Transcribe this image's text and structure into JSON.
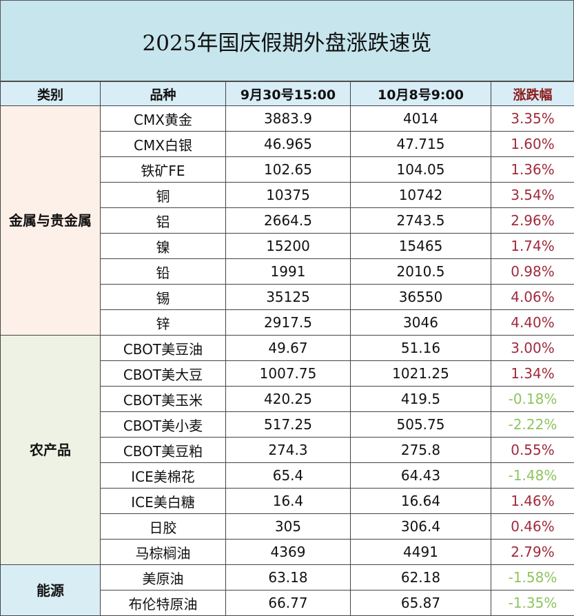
{
  "title": "2025年国庆假期外盘涨跌速览",
  "headers": [
    "类别",
    "品种",
    "9月30号15:00",
    "10月8号9:00",
    "涨跌幅"
  ],
  "colors": {
    "title_bg": "#c6e5ed",
    "header_bg": "#d8edf6",
    "positive": "#a02a3c",
    "negative": "#8ec45e",
    "change_header": "#8b1a1a"
  },
  "categories": [
    {
      "name": "金属与贵金属",
      "bg": "#fdf0e8",
      "rows": [
        [
          "CMX黄金",
          "3883.9",
          "4014",
          "3.35%"
        ],
        [
          "CMX白银",
          "46.965",
          "47.715",
          "1.60%"
        ],
        [
          "铁矿FE",
          "102.65",
          "104.05",
          "1.36%"
        ],
        [
          "铜",
          "10375",
          "10742",
          "3.54%"
        ],
        [
          "铝",
          "2664.5",
          "2743.5",
          "2.96%"
        ],
        [
          "镍",
          "15200",
          "15465",
          "1.74%"
        ],
        [
          "铅",
          "1991",
          "2010.5",
          "0.98%"
        ],
        [
          "锡",
          "35125",
          "36550",
          "4.06%"
        ],
        [
          "锌",
          "2917.5",
          "3046",
          "4.40%"
        ]
      ]
    },
    {
      "name": "农产品",
      "bg": "#edf2e4",
      "rows": [
        [
          "CBOT美豆油",
          "49.67",
          "51.16",
          "3.00%"
        ],
        [
          "CBOT美大豆",
          "1007.75",
          "1021.25",
          "1.34%"
        ],
        [
          "CBOT美玉米",
          "420.25",
          "419.5",
          "-0.18%"
        ],
        [
          "CBOT美小麦",
          "517.25",
          "505.75",
          "-2.22%"
        ],
        [
          "CBOT美豆粕",
          "274.3",
          "275.8",
          "0.55%"
        ],
        [
          "ICE美棉花",
          "65.4",
          "64.43",
          "-1.48%"
        ],
        [
          "ICE美白糖",
          "16.4",
          "16.64",
          "1.46%"
        ],
        [
          "日胶",
          "305",
          "306.4",
          "0.46%"
        ],
        [
          "马棕榈油",
          "4369",
          "4491",
          "2.79%"
        ]
      ]
    },
    {
      "name": "能源",
      "bg": "#d9edf5",
      "rows": [
        [
          "美原油",
          "63.18",
          "62.18",
          "-1.58%"
        ],
        [
          "布伦特原油",
          "66.77",
          "65.87",
          "-1.35%"
        ]
      ]
    }
  ]
}
